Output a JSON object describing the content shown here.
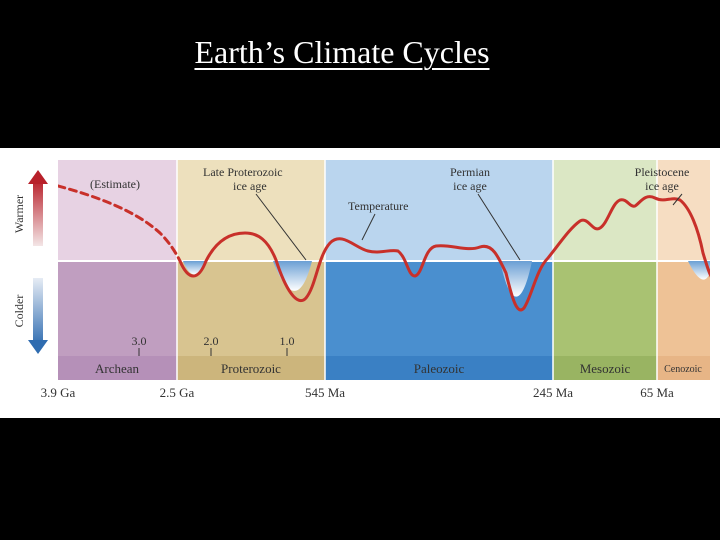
{
  "title": "Earth’s Climate Cycles",
  "figure": {
    "axis_labels": {
      "warmer": "Warmer",
      "colder": "Colder"
    },
    "annotations": {
      "estimate": "(Estimate)",
      "late_proterozoic": [
        "Late Proterozoic",
        "ice age"
      ],
      "permian": [
        "Permian",
        "ice age"
      ],
      "pleistocene": [
        "Pleistocene",
        "ice age"
      ],
      "temperature": "Temperature"
    },
    "scale_marks": [
      "3.0",
      "2.0",
      "1.0"
    ],
    "eras": [
      "Archean",
      "Proterozoic",
      "Paleozoic",
      "Mesozoic",
      "Cenozoic"
    ],
    "time_ticks": [
      "3.9 Ga",
      "2.5 Ga",
      "545 Ma",
      "245 Ma",
      "65 Ma"
    ],
    "colors": {
      "temperature_curve": "#c8302a",
      "warm_arrow": "#b8202a",
      "cold_arrow": "#2f6cb0",
      "archean": "#c09ec0",
      "proterozoic": "#d8c490",
      "paleozoic": "#4a8fcf",
      "mesozoic": "#a9c272",
      "cenozoic": "#eec296"
    }
  }
}
